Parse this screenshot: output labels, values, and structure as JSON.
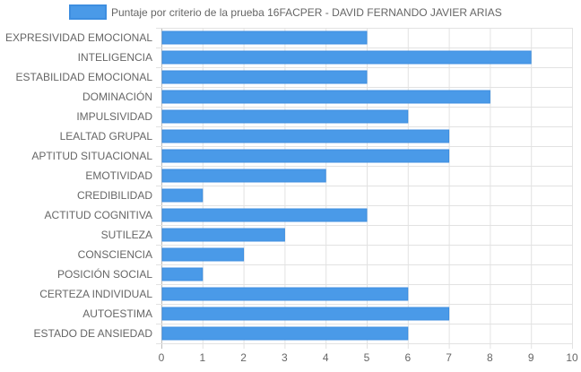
{
  "chart_data": {
    "type": "bar",
    "orientation": "horizontal",
    "legend": {
      "position": "top",
      "label": "Puntaje por criterio de la prueba 16FACPER - DAVID FERNANDO JAVIER ARIAS"
    },
    "categories": [
      "EXPRESIVIDAD EMOCIONAL",
      "INTELIGENCIA",
      "ESTABILIDAD EMOCIONAL",
      "DOMINACIÓN",
      "IMPULSIVIDAD",
      "LEALTAD GRUPAL",
      "APTITUD SITUACIONAL",
      "EMOTIVIDAD",
      "CREDIBILIDAD",
      "ACTITUD COGNITIVA",
      "SUTILEZA",
      "CONSCIENCIA",
      "POSICIÓN SOCIAL",
      "CERTEZA INDIVIDUAL",
      "AUTOESTIMA",
      "ESTADO DE ANSIEDAD"
    ],
    "series": [
      {
        "name": "Puntaje por criterio de la prueba 16FACPER - DAVID FERNANDO JAVIER ARIAS",
        "values": [
          5,
          9,
          5,
          8,
          6,
          7,
          7,
          4,
          1,
          5,
          3,
          2,
          1,
          6,
          7,
          6
        ],
        "color": "#4a9ae8",
        "border_color": "#3d8ee0"
      }
    ],
    "xlim": [
      0,
      10
    ],
    "x_ticks": [
      "0",
      "1",
      "2",
      "3",
      "4",
      "5",
      "6",
      "7",
      "8",
      "9",
      "10"
    ],
    "grid": true,
    "colors": {
      "grid": "#e2e2e2",
      "axis_line": "#bbbbbb",
      "text": "#666666"
    }
  }
}
